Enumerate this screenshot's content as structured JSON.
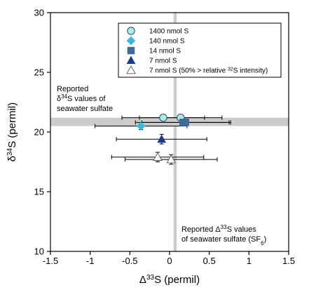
{
  "chart_data": {
    "type": "scatter",
    "xlabel_main": "Δ",
    "xlabel_sup": "33",
    "xlabel_rest": "S (permil)",
    "ylabel_main": "δ",
    "ylabel_sup": "34",
    "ylabel_rest": "S (permil)",
    "xlim": [
      -1.5,
      1.5
    ],
    "ylim": [
      10,
      30
    ],
    "x_ticks": [
      "-1.5",
      "-1",
      "-0.5",
      "0",
      "0.5",
      "1",
      "1.5"
    ],
    "y_ticks": [
      "10",
      "15",
      "20",
      "25",
      "30"
    ],
    "reference_bands": {
      "seawater_d34S": {
        "y_min": 20.5,
        "y_max": 21.2,
        "color": "#cccccc"
      },
      "seawater_D33S": {
        "x_min": 0.05,
        "x_max": 0.09,
        "color": "#cccccc"
      }
    },
    "annotations": {
      "d34S_line1": "Reported",
      "d34S_line2_pre": "δ",
      "d34S_line2_sup": "34",
      "d34S_line2_post": "S values of",
      "d34S_line3": "seawater sulfate",
      "D33S_line1_pre": "Reported Δ",
      "D33S_line1_sup": "33",
      "D33S_line1_post": "S values",
      "D33S_line2_pre": "of seawater sulfate (SF",
      "D33S_line2_sub": "6",
      "D33S_line2_post": ")"
    },
    "legend": [
      {
        "label": "1400 nmol S",
        "marker": "circle",
        "color": "#a6ecf0"
      },
      {
        "label": "140 nmol S",
        "marker": "diamond",
        "color": "#3ab8dc"
      },
      {
        "label": "14 nmol S",
        "marker": "square",
        "color": "#3e6a9c"
      },
      {
        "label": "7 nmol S",
        "marker": "triangle",
        "color": "#1a3a8c"
      },
      {
        "label_pre": "7 nmol S (50% > relative ",
        "label_sup": "32",
        "label_post": "S intensity)",
        "marker": "triangle-open",
        "color": "#ffffff"
      }
    ],
    "series": [
      {
        "name": "1400 nmol S",
        "marker": "circle",
        "color": "#a6ecf0",
        "points": [
          {
            "x": -0.08,
            "y": 21.2,
            "xerr": 0.52,
            "yerr": 0.25
          },
          {
            "x": 0.14,
            "y": 21.2,
            "xerr": 0.52,
            "yerr": 0.25
          }
        ]
      },
      {
        "name": "140 nmol S",
        "marker": "diamond",
        "color": "#3ab8dc",
        "points": [
          {
            "x": -0.36,
            "y": 20.5,
            "xerr": 0.58,
            "yerr": 0.3
          }
        ]
      },
      {
        "name": "14 nmol S",
        "marker": "square",
        "color": "#3e6a9c",
        "points": [
          {
            "x": 0.17,
            "y": 20.8,
            "xerr": 0.6,
            "yerr": 0.25
          },
          {
            "x": 0.2,
            "y": 20.8,
            "xerr": 0.55,
            "yerr": 0.25
          }
        ]
      },
      {
        "name": "7 nmol S",
        "marker": "triangle",
        "color": "#1a3a8c",
        "points": [
          {
            "x": -0.1,
            "y": 19.4,
            "xerr": 0.57,
            "yerr": 0.4
          }
        ]
      },
      {
        "name": "7 nmol S (50% > relative 32S intensity)",
        "marker": "triangle-open",
        "color": "#ffffff",
        "points": [
          {
            "x": -0.15,
            "y": 17.9,
            "xerr": 0.58,
            "yerr": 0.4
          },
          {
            "x": 0.02,
            "y": 17.7,
            "xerr": 0.58,
            "yerr": 0.4
          }
        ]
      }
    ]
  }
}
